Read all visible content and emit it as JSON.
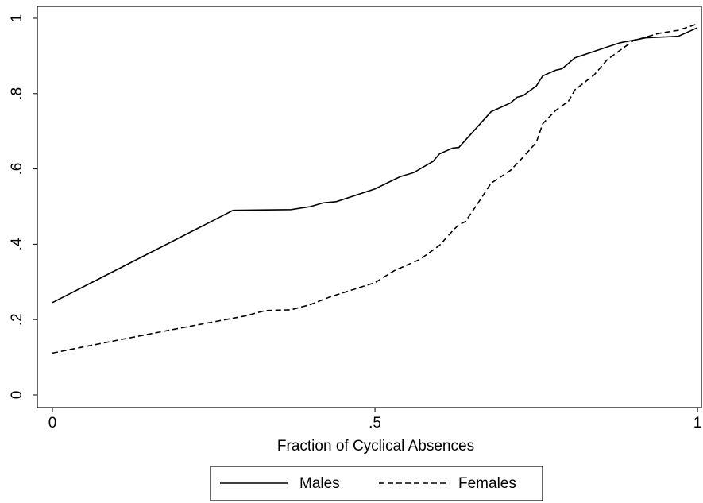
{
  "chart_data": {
    "type": "line",
    "x_label": "Fraction of Cyclical Absences",
    "xlim": [
      -0.0234,
      1.006
    ],
    "ylim": [
      -0.0338,
      1.0316
    ],
    "xticks": [
      0,
      {
        "value": 0.5,
        "label": ".5"
      },
      1
    ],
    "yticks": [
      0,
      {
        "value": 0.2,
        "label": ".2"
      },
      {
        "value": 0.4,
        "label": ".4"
      },
      {
        "value": 0.6,
        "label": ".6"
      },
      {
        "value": 0.8,
        "label": ".8"
      },
      1
    ],
    "grid": false,
    "legend_position": "bottom",
    "series": [
      {
        "name": "Males",
        "color": "#000000",
        "dash": "solid",
        "x": [
          0,
          0.28,
          0.37,
          0.4,
          0.42,
          0.44,
          0.5,
          0.53,
          0.54,
          0.56,
          0.58,
          0.59,
          0.6,
          0.62,
          0.63,
          0.68,
          0.71,
          0.72,
          0.73,
          0.75,
          0.76,
          0.78,
          0.79,
          0.81,
          0.85,
          0.88,
          0.92,
          0.97,
          1
        ],
        "values": [
          0.245,
          0.49,
          0.492,
          0.5,
          0.51,
          0.513,
          0.547,
          0.572,
          0.58,
          0.59,
          0.61,
          0.62,
          0.64,
          0.655,
          0.657,
          0.752,
          0.775,
          0.79,
          0.795,
          0.82,
          0.847,
          0.862,
          0.866,
          0.895,
          0.918,
          0.935,
          0.948,
          0.952,
          0.975
        ]
      },
      {
        "name": "Females",
        "color": "#000000",
        "dash": "dashed",
        "x": [
          0,
          0.1,
          0.2,
          0.3,
          0.33,
          0.37,
          0.4,
          0.43,
          0.5,
          0.53,
          0.55,
          0.57,
          0.6,
          0.62,
          0.63,
          0.64,
          0.66,
          0.68,
          0.71,
          0.73,
          0.75,
          0.76,
          0.78,
          0.8,
          0.81,
          0.84,
          0.86,
          0.9,
          0.94,
          0.97,
          1
        ],
        "values": [
          0.111,
          0.145,
          0.178,
          0.21,
          0.224,
          0.226,
          0.24,
          0.26,
          0.298,
          0.33,
          0.345,
          0.36,
          0.397,
          0.435,
          0.452,
          0.46,
          0.51,
          0.562,
          0.596,
          0.632,
          0.67,
          0.72,
          0.755,
          0.78,
          0.81,
          0.85,
          0.89,
          0.94,
          0.96,
          0.968,
          0.985
        ]
      }
    ]
  }
}
